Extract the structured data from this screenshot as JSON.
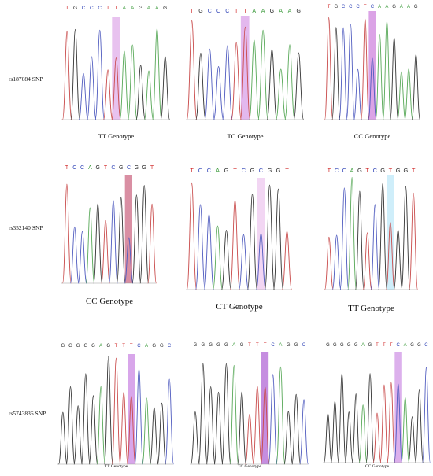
{
  "snps": [
    {
      "label": "rs187084 SNP"
    },
    {
      "label": "rs352140 SNP"
    },
    {
      "label": "rs5743836 SNP"
    }
  ],
  "panels": [
    {
      "sequence": "TGCCCTTAAGAAG",
      "highlight_index": 6,
      "highlight_color": "#e8c2ef",
      "genotype": "TT Genotype"
    },
    {
      "sequence": "TGCCCTTAAGAAG",
      "highlight_index": 6,
      "highlight_color": "#e3b8ee",
      "genotype": "TC Genotype"
    },
    {
      "sequence": "TGCCCTCAAGAAG",
      "highlight_index": 6,
      "highlight_color": "#dba3e6",
      "genotype": "CC Genotype"
    },
    {
      "sequence": "TCCAGTCGCGGT",
      "highlight_index": 8,
      "highlight_color": "#d98fa3",
      "genotype": "CC Genotype"
    },
    {
      "sequence": "TCCAGTCGCGGT",
      "highlight_index": 8,
      "highlight_color": "#f2d6f3",
      "genotype": "CT Genotype"
    },
    {
      "sequence": "TCCAGTCGTGGT",
      "highlight_index": 8,
      "highlight_color": "#cfeefa",
      "genotype": "TT Genotype"
    },
    {
      "sequence": "GGGGGAGTTTCAGGC",
      "highlight_index": 9,
      "highlight_color": "#d8a6ea",
      "genotype": "TT Genotype"
    },
    {
      "sequence": "GGGGGAGTTTCAGGC",
      "highlight_index": 9,
      "highlight_color": "#c58de0",
      "genotype": "TC Genotype"
    },
    {
      "sequence": "GGGGGAGTTTCAGGC",
      "highlight_index": 10,
      "highlight_color": "#dcb0ec",
      "genotype": "CC Genotype"
    }
  ],
  "base_colors": {
    "A": "#3a9a3a",
    "C": "#2b3fb5",
    "G": "#222222",
    "T": "#d12b2b"
  },
  "trace_colors": {
    "A": "#57a857",
    "C": "#4f5bbf",
    "G": "#333333",
    "T": "#c94b4b"
  }
}
